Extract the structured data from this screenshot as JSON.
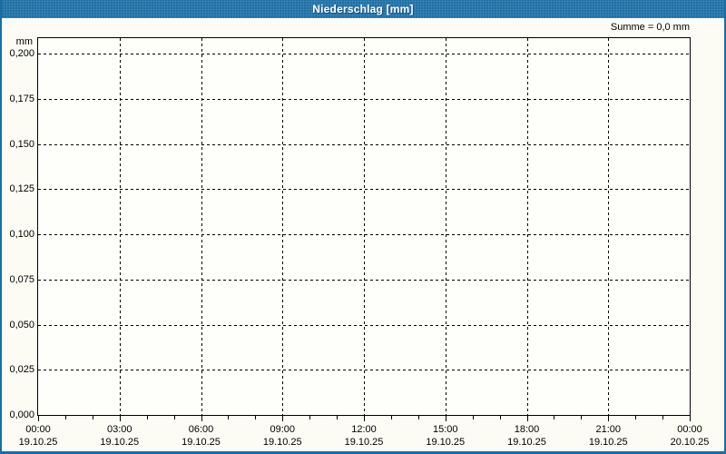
{
  "window": {
    "title": "Niederschlag [mm]"
  },
  "header": {
    "summary": "Summe = 0,0 mm"
  },
  "colors": {
    "accent_blue": "#1e6fa5",
    "title_text": "#ffffff",
    "grid": "#000000",
    "plot_bg": "#fefefb",
    "canvas_bg": "#fcfcf4",
    "text": "#000000"
  },
  "axes": {
    "y_unit": "mm",
    "y_tick_labels": [
      "0,200",
      "0,175",
      "0,150",
      "0,125",
      "0,100",
      "0,075",
      "0,050",
      "0,025",
      "0,000"
    ],
    "x_major_ticks": [
      {
        "time": "00:00",
        "date": "19.10.25"
      },
      {
        "time": "03:00",
        "date": "19.10.25"
      },
      {
        "time": "06:00",
        "date": "19.10.25"
      },
      {
        "time": "09:00",
        "date": "19.10.25"
      },
      {
        "time": "12:00",
        "date": "19.10.25"
      },
      {
        "time": "15:00",
        "date": "19.10.25"
      },
      {
        "time": "18:00",
        "date": "19.10.25"
      },
      {
        "time": "21:00",
        "date": "19.10.25"
      },
      {
        "time": "00:00",
        "date": "20.10.25"
      }
    ],
    "minor_ticks_per_major_interval": 3
  },
  "chart_data": {
    "type": "bar",
    "title": "Niederschlag [mm]",
    "ylabel": "mm",
    "ylim": [
      0,
      0.2
    ],
    "y_tick_step": 0.025,
    "x": [
      "00:00",
      "03:00",
      "06:00",
      "09:00",
      "12:00",
      "15:00",
      "18:00",
      "21:00",
      "00:00"
    ],
    "x_dates": [
      "19.10.25",
      "19.10.25",
      "19.10.25",
      "19.10.25",
      "19.10.25",
      "19.10.25",
      "19.10.25",
      "19.10.25",
      "20.10.25"
    ],
    "series": [
      {
        "name": "Niederschlag",
        "values": [
          0,
          0,
          0,
          0,
          0,
          0,
          0,
          0,
          0
        ]
      }
    ],
    "total_label": "Summe = 0,0 mm",
    "grid": true,
    "grid_style": "dashed",
    "legend_position": "none"
  }
}
